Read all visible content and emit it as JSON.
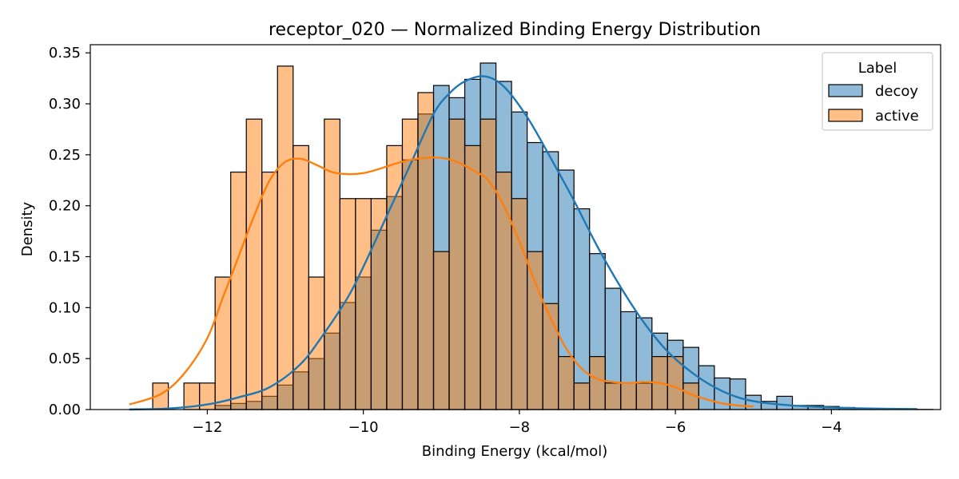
{
  "chart_data": {
    "type": "histogram",
    "title": "receptor_020 — Normalized Binding Energy Distribution",
    "xlabel": "Binding Energy (kcal/mol)",
    "ylabel": "Density",
    "xlim": [
      -13.5,
      -2.6
    ],
    "ylim": [
      0,
      0.358
    ],
    "xticks": [
      -12,
      -10,
      -8,
      -6,
      -4
    ],
    "xtick_labels": [
      "−12",
      "−10",
      "−8",
      "−6",
      "−4"
    ],
    "yticks": [
      0.0,
      0.05,
      0.1,
      0.15,
      0.2,
      0.25,
      0.3,
      0.35
    ],
    "ytick_labels": [
      "0.00",
      "0.05",
      "0.10",
      "0.15",
      "0.20",
      "0.25",
      "0.30",
      "0.35"
    ],
    "grid": false,
    "legend": {
      "title": "Label",
      "placement": "top-right",
      "entries": [
        "decoy",
        "active"
      ]
    },
    "bin_start": -12.7,
    "bin_width": 0.2,
    "series": [
      {
        "name": "decoy",
        "color": "#1f77b4",
        "values": [
          0,
          0,
          0,
          0,
          0.004,
          0.006,
          0.008,
          0.013,
          0.024,
          0.037,
          0.05,
          0.075,
          0.105,
          0.13,
          0.176,
          0.209,
          0.245,
          0.29,
          0.318,
          0.306,
          0.324,
          0.34,
          0.322,
          0.292,
          0.262,
          0.253,
          0.235,
          0.197,
          0.153,
          0.119,
          0.096,
          0.09,
          0.075,
          0.068,
          0.061,
          0.043,
          0.031,
          0.03,
          0.014,
          0.008,
          0.013,
          0.004,
          0.004,
          0.003,
          0.002,
          0.001,
          0.0005,
          0.0003,
          0.0002,
          0.0001
        ]
      },
      {
        "name": "active",
        "color": "#ff7f0e",
        "values": [
          0.026,
          0,
          0.026,
          0.026,
          0.13,
          0.233,
          0.285,
          0.233,
          0.337,
          0.259,
          0.13,
          0.285,
          0.207,
          0.207,
          0.207,
          0.259,
          0.285,
          0.311,
          0.155,
          0.285,
          0.259,
          0.285,
          0.233,
          0.207,
          0.155,
          0.104,
          0.052,
          0.026,
          0.052,
          0.026,
          0.026,
          0.026,
          0.052,
          0.052,
          0.026,
          0,
          0,
          0,
          0,
          0,
          0,
          0,
          0,
          0,
          0,
          0,
          0,
          0,
          0,
          0
        ]
      }
    ],
    "kde": [
      {
        "name": "decoy",
        "x": [
          -13,
          -12.5,
          -12,
          -11.6,
          -11.2,
          -10.8,
          -10.5,
          -10.2,
          -10.0,
          -9.7,
          -9.4,
          -9.1,
          -8.9,
          -8.7,
          -8.45,
          -8.2,
          -7.9,
          -7.6,
          -7.3,
          -7.0,
          -6.7,
          -6.4,
          -6.1,
          -5.8,
          -5.5,
          -5.2,
          -4.9,
          -4.5,
          -4.0,
          -3.5,
          -2.9
        ],
        "y": [
          0.0001,
          0.001,
          0.005,
          0.012,
          0.022,
          0.045,
          0.075,
          0.11,
          0.14,
          0.19,
          0.24,
          0.29,
          0.31,
          0.322,
          0.327,
          0.317,
          0.287,
          0.247,
          0.205,
          0.16,
          0.12,
          0.085,
          0.057,
          0.037,
          0.022,
          0.012,
          0.007,
          0.004,
          0.002,
          0.001,
          0.0005
        ]
      },
      {
        "name": "active",
        "x": [
          -13,
          -12.6,
          -12.3,
          -12.0,
          -11.8,
          -11.6,
          -11.4,
          -11.2,
          -11.0,
          -10.8,
          -10.6,
          -10.4,
          -10.2,
          -10.0,
          -9.8,
          -9.6,
          -9.4,
          -9.2,
          -9.0,
          -8.8,
          -8.6,
          -8.4,
          -8.2,
          -8.0,
          -7.8,
          -7.6,
          -7.4,
          -7.2,
          -7.0,
          -6.8,
          -6.6,
          -6.4,
          -6.2,
          -6.0,
          -5.8,
          -5.6,
          -5.4,
          -5.2,
          -5.0
        ],
        "y": [
          0.005,
          0.015,
          0.035,
          0.07,
          0.11,
          0.15,
          0.19,
          0.225,
          0.243,
          0.246,
          0.24,
          0.233,
          0.231,
          0.232,
          0.236,
          0.241,
          0.245,
          0.247,
          0.247,
          0.243,
          0.235,
          0.225,
          0.2,
          0.165,
          0.125,
          0.09,
          0.06,
          0.04,
          0.03,
          0.027,
          0.026,
          0.027,
          0.026,
          0.022,
          0.015,
          0.01,
          0.006,
          0.004,
          0.003
        ]
      }
    ]
  }
}
